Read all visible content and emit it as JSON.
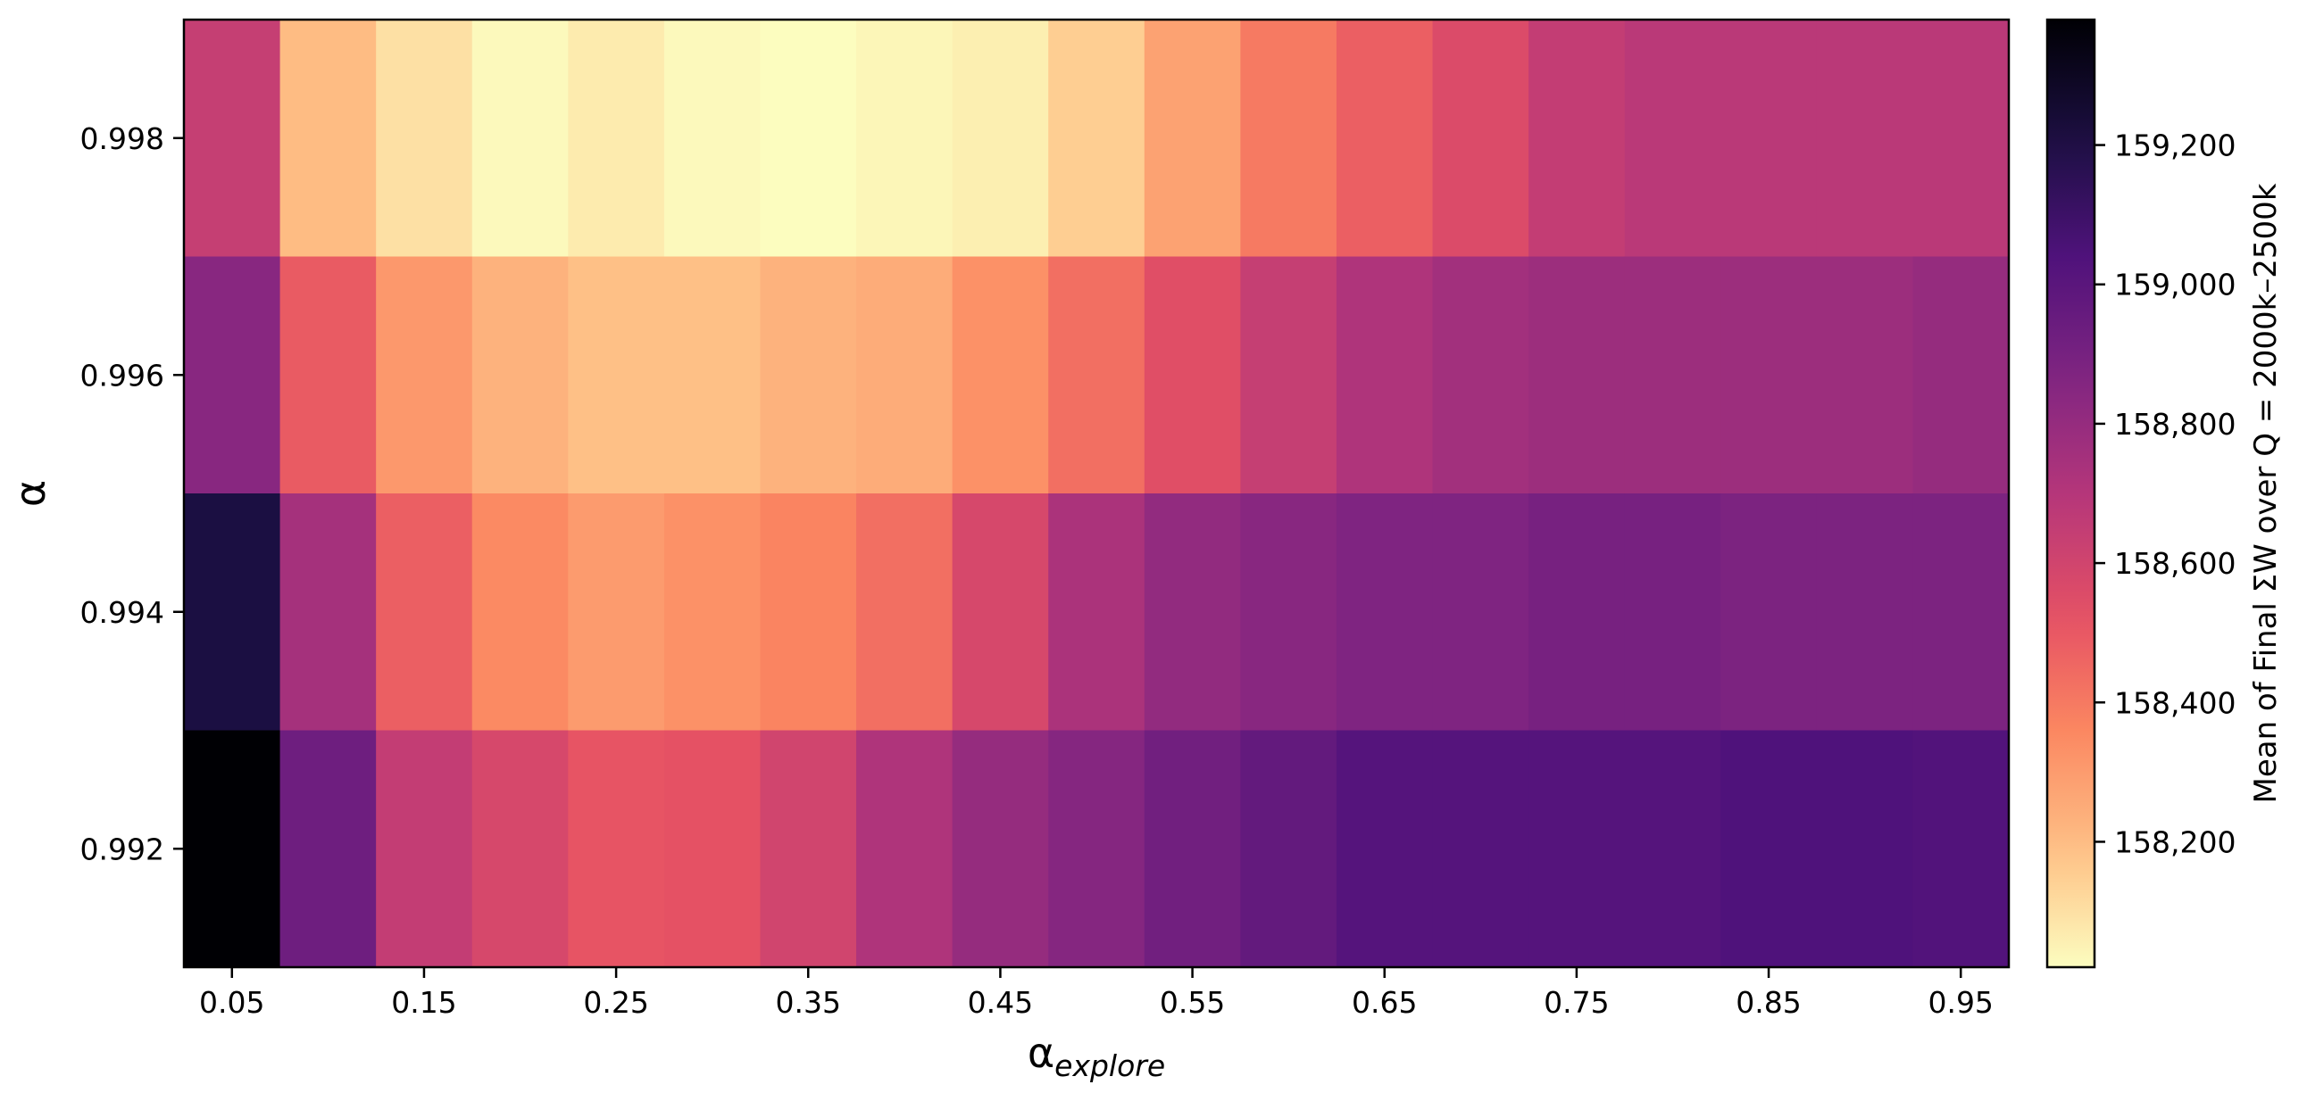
{
  "chart_data": {
    "type": "heatmap",
    "title": "",
    "xlabel_base": "α",
    "xlabel_sub": "explore",
    "ylabel": "α",
    "x": [
      "0.05",
      "0.10",
      "0.15",
      "0.20",
      "0.25",
      "0.30",
      "0.35",
      "0.40",
      "0.45",
      "0.50",
      "0.55",
      "0.60",
      "0.65",
      "0.70",
      "0.75",
      "0.80",
      "0.85",
      "0.90",
      "0.95"
    ],
    "x_tick_labels": [
      "0.05",
      "0.15",
      "0.25",
      "0.35",
      "0.45",
      "0.55",
      "0.65",
      "0.75",
      "0.85",
      "0.95"
    ],
    "y": [
      "0.998",
      "0.996",
      "0.994",
      "0.992"
    ],
    "y_tick_labels": [
      "0.998",
      "0.996",
      "0.994",
      "0.992"
    ],
    "values": [
      [
        158640,
        158200,
        158100,
        158030,
        158070,
        158030,
        158020,
        158040,
        158060,
        158150,
        158280,
        158400,
        158480,
        158560,
        158650,
        158680,
        158680,
        158680,
        158680
      ],
      [
        158840,
        158490,
        158310,
        158230,
        158190,
        158190,
        158230,
        158250,
        158330,
        158430,
        158540,
        158640,
        158720,
        158760,
        158780,
        158780,
        158780,
        158780,
        158800
      ],
      [
        159210,
        158750,
        158480,
        158350,
        158300,
        158330,
        158370,
        158430,
        158580,
        158730,
        158810,
        158840,
        158870,
        158870,
        158900,
        158900,
        158880,
        158880,
        158880
      ],
      [
        159380,
        158930,
        158650,
        158580,
        158510,
        158520,
        158600,
        158720,
        158800,
        158850,
        158920,
        158970,
        159020,
        159020,
        159020,
        159020,
        159040,
        159040,
        159030
      ]
    ],
    "colorbar": {
      "label": "Mean of Final ΣW over Q = 2000k–2500k",
      "min": 158020,
      "max": 159380,
      "ticks": [
        158200,
        158400,
        158600,
        158800,
        159000,
        159200
      ],
      "tick_labels": [
        "158,200",
        "158,400",
        "158,600",
        "158,800",
        "159,000",
        "159,200"
      ],
      "colormap": "magma_r"
    }
  }
}
